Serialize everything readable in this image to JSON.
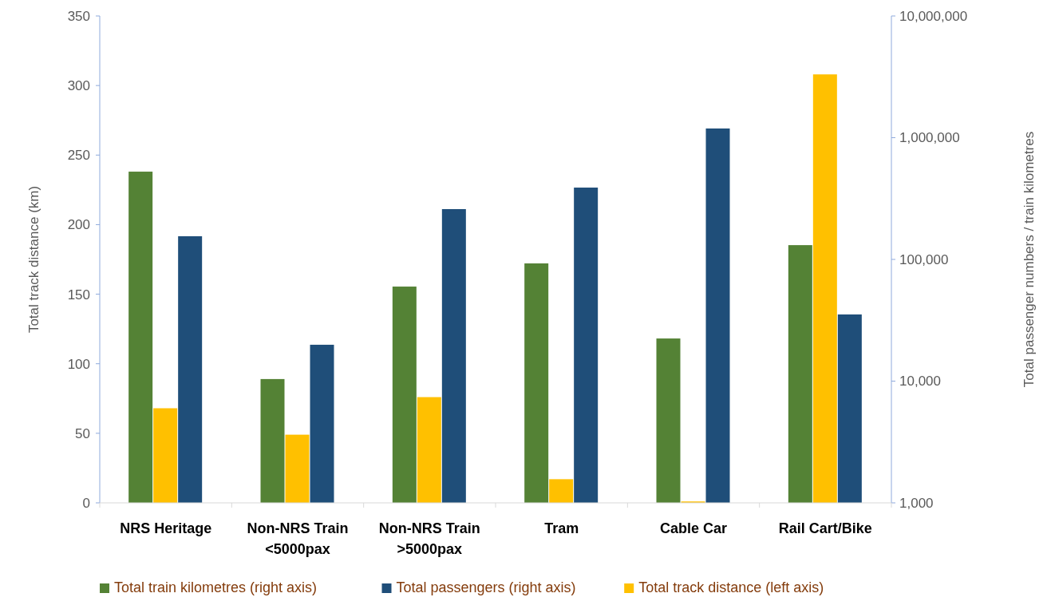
{
  "chart_data": {
    "type": "bar",
    "categories": [
      "NRS Heritage",
      "Non-NRS Train\n<5000pax",
      "Non-NRS Train\n>5000pax",
      "Tram",
      "Cable Car",
      "Rail Cart/Bike"
    ],
    "series": [
      {
        "name": "Total train kilometres (right axis)",
        "color": "#548235",
        "axis": "y2",
        "values": [
          526000,
          10400,
          59800,
          92700,
          22400,
          131000
        ]
      },
      {
        "name": "Total passengers (right axis)",
        "color": "#1f4e79",
        "axis": "y2",
        "values": [
          155000,
          19900,
          259000,
          389000,
          1190000,
          35300
        ]
      },
      {
        "name": "Total track distance (left axis)",
        "color": "#ffc000",
        "values": [
          68,
          49,
          76,
          17,
          1,
          308
        ]
      }
    ],
    "ylabel": "Total track distance (km)",
    "y2label": "Total passenger numbers / train kilometres",
    "ylim": [
      0,
      350
    ],
    "yticks": [
      0,
      50,
      100,
      150,
      200,
      250,
      300,
      350
    ],
    "y2lim": [
      1000,
      10000000
    ],
    "y2ticks": [
      {
        "value": 1000,
        "label": "1,000"
      },
      {
        "value": 10000,
        "label": "10,000"
      },
      {
        "value": 100000,
        "label": "100,000"
      },
      {
        "value": 1000000,
        "label": "1,000,000"
      },
      {
        "value": 10000000,
        "label": "10,000,000"
      }
    ],
    "log": "y2",
    "legend": "bottom"
  }
}
